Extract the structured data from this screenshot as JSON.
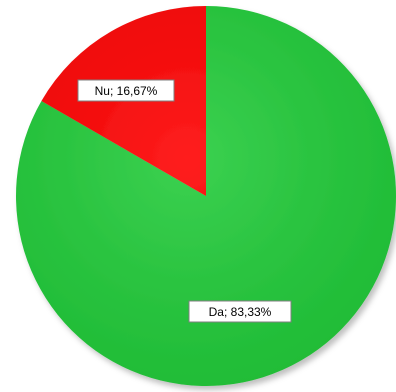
{
  "chart_data": {
    "type": "pie",
    "slices": [
      {
        "category": "Da",
        "value": 83.33,
        "label": "Da; 83,33%",
        "color": "#22cc3a"
      },
      {
        "category": "Nu",
        "value": 16.67,
        "label": "Nu; 16,67%",
        "color": "#ff0000"
      }
    ],
    "start_angle_deg": 0,
    "direction": "clockwise",
    "legend": "none",
    "grid": false,
    "data_labels": "category; percentage"
  }
}
